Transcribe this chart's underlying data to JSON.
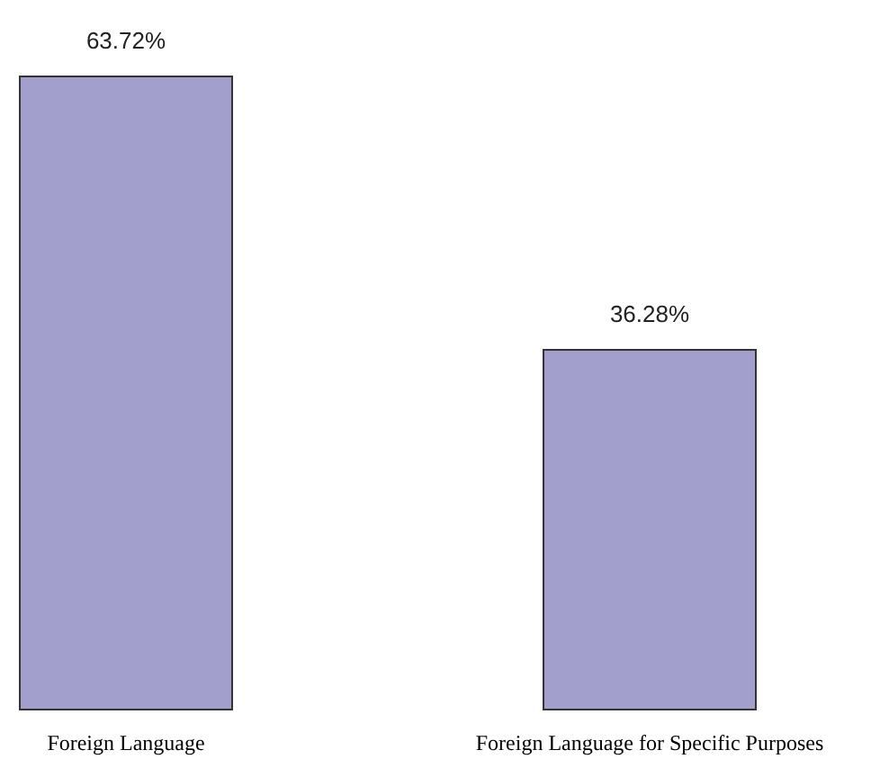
{
  "chart_data": {
    "type": "bar",
    "categories": [
      "Foreign Language",
      "Foreign Language for Specific Purposes"
    ],
    "values": [
      63.72,
      36.28
    ],
    "value_labels": [
      "63.72%",
      "36.28%"
    ],
    "color": "#a29fcd"
  }
}
